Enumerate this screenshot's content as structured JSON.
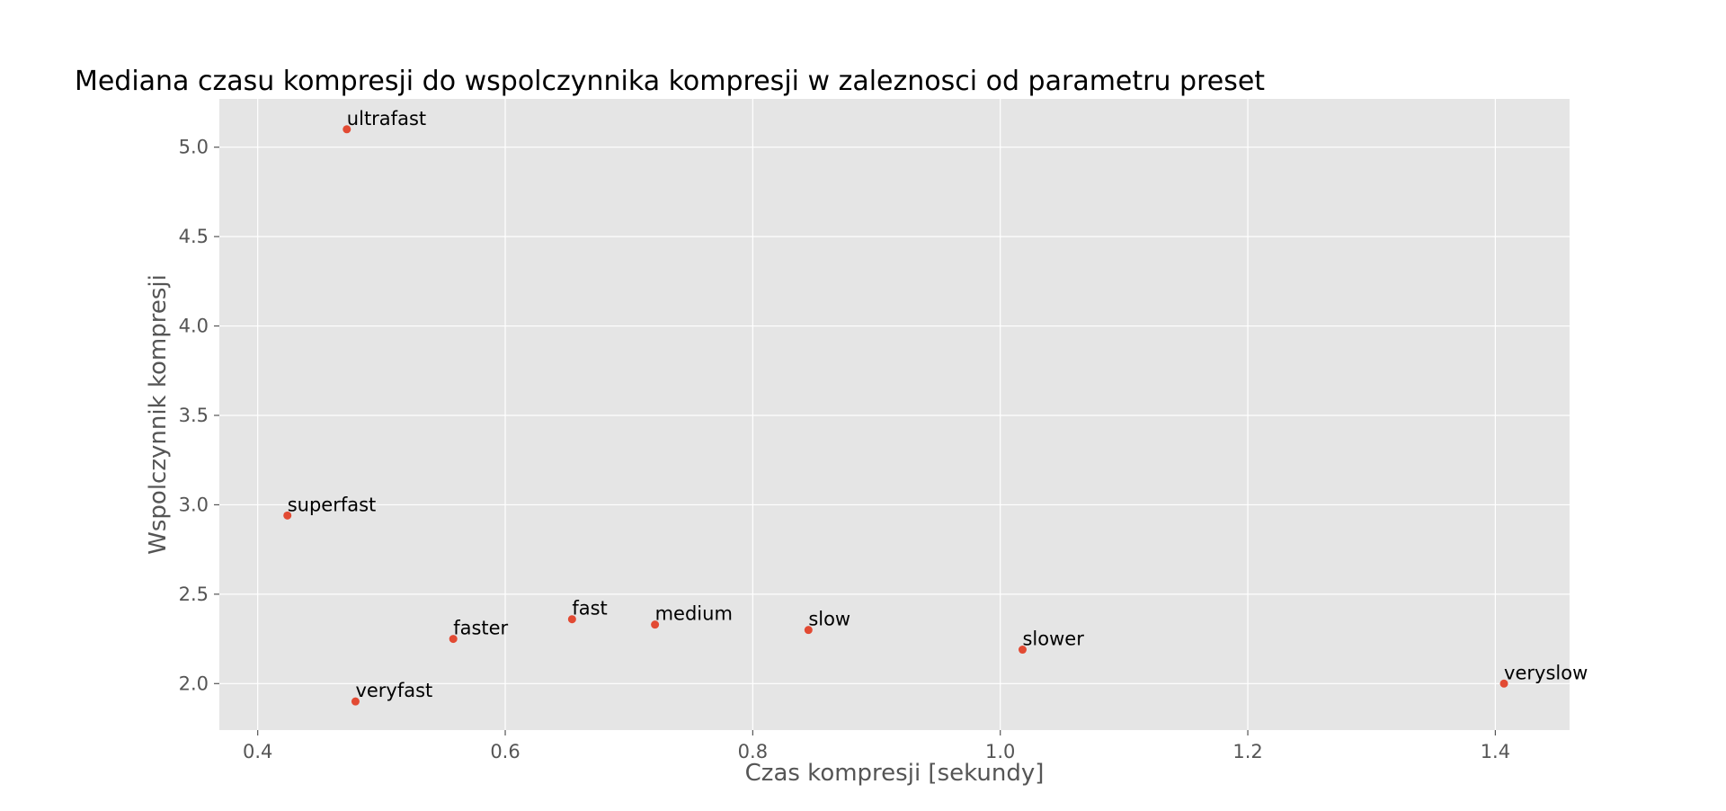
{
  "chart_data": {
    "type": "scatter",
    "title": "Mediana czasu kompresji do wspolczynnika kompresji w zaleznosci od parametru preset",
    "xlabel": "Czas kompresji [sekundy]",
    "ylabel": "Wspolczynnik kompresji",
    "xlim": [
      0.369,
      1.46
    ],
    "ylim": [
      1.74,
      5.27
    ],
    "xticks": [
      0.4,
      0.6,
      0.8,
      1.0,
      1.2,
      1.4
    ],
    "xtick_labels": [
      "0.4",
      "0.6",
      "0.8",
      "1.0",
      "1.2",
      "1.4"
    ],
    "yticks": [
      2.0,
      2.5,
      3.0,
      3.5,
      4.0,
      4.5,
      5.0
    ],
    "ytick_labels": [
      "2.0",
      "2.5",
      "3.0",
      "3.5",
      "4.0",
      "4.5",
      "5.0"
    ],
    "grid": true,
    "point_color": "#e24a33",
    "background_color": "#e5e5e5",
    "points": [
      {
        "label": "ultrafast",
        "x": 0.472,
        "y": 5.1
      },
      {
        "label": "superfast",
        "x": 0.424,
        "y": 2.94
      },
      {
        "label": "veryfast",
        "x": 0.479,
        "y": 1.9
      },
      {
        "label": "faster",
        "x": 0.558,
        "y": 2.25
      },
      {
        "label": "fast",
        "x": 0.654,
        "y": 2.36
      },
      {
        "label": "medium",
        "x": 0.721,
        "y": 2.33
      },
      {
        "label": "slow",
        "x": 0.845,
        "y": 2.3
      },
      {
        "label": "slower",
        "x": 1.018,
        "y": 2.19
      },
      {
        "label": "veryslow",
        "x": 1.407,
        "y": 2.0
      }
    ]
  }
}
